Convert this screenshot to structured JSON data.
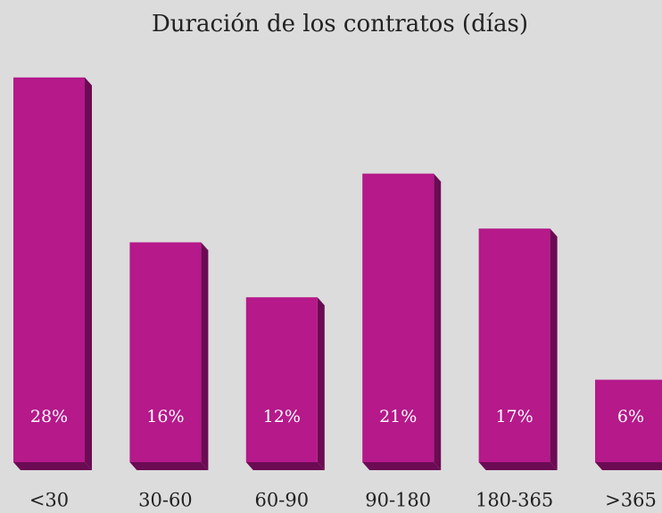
{
  "chart_data": {
    "type": "bar",
    "title": "Duración de los contratos (días)",
    "categories": [
      "<30",
      "30-60",
      "60-90",
      "90-180",
      "180-365",
      ">365"
    ],
    "values": [
      28,
      16,
      12,
      21,
      17,
      6
    ],
    "value_labels": [
      "28%",
      "16%",
      "12%",
      "21%",
      "17%",
      "6%"
    ],
    "color": "#b5198a",
    "side_color": "#6b0b53"
  }
}
